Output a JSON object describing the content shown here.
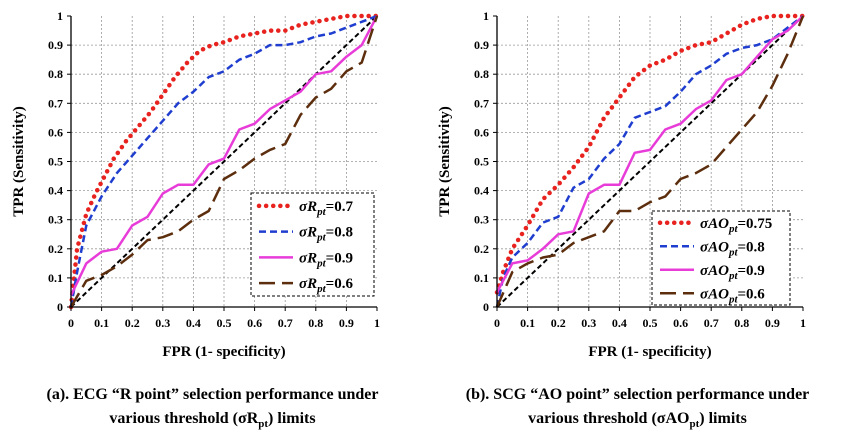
{
  "panels": [
    {
      "caption_line1": "(a). ECG “R point” selection performance under",
      "caption_line2": "various threshold (σR",
      "caption_sub": "pt",
      "caption_end": ") limits"
    },
    {
      "caption_line1": "(b). SCG “AO point” selection performance under",
      "caption_line2": "various threshold (σAO",
      "caption_sub": "pt",
      "caption_end": ") limits"
    }
  ],
  "chart_data": [
    {
      "type": "line",
      "xlabel": "FPR (1- specificity)",
      "ylabel": "TPR (Sensitivity)",
      "xlim": [
        0,
        1
      ],
      "ylim": [
        0,
        1
      ],
      "xticks": [
        "0",
        "0.1",
        "0.2",
        "0.3",
        "0.4",
        "0.5",
        "0.6",
        "0.7",
        "0.8",
        "0.9",
        "1"
      ],
      "yticks": [
        "0",
        "0.1",
        "0.2",
        "0.3",
        "0.4",
        "0.5",
        "0.6",
        "0.7",
        "0.8",
        "0.9",
        "1"
      ],
      "grid": true,
      "legend_position": "bottom-right",
      "series": [
        {
          "name_base": "σR",
          "name_sub": "pt",
          "name_value": "=0.7",
          "color": "#e8231f",
          "style": "dotted",
          "x": [
            0,
            0.02,
            0.05,
            0.08,
            0.11,
            0.14,
            0.18,
            0.22,
            0.26,
            0.3,
            0.34,
            0.38,
            0.42,
            0.46,
            0.5,
            0.55,
            0.6,
            0.65,
            0.7,
            0.75,
            0.8,
            0.85,
            0.9,
            0.95,
            1
          ],
          "y": [
            0,
            0.2,
            0.32,
            0.39,
            0.45,
            0.51,
            0.57,
            0.62,
            0.67,
            0.73,
            0.79,
            0.84,
            0.88,
            0.9,
            0.91,
            0.93,
            0.94,
            0.95,
            0.95,
            0.97,
            0.98,
            0.99,
            1.0,
            1.0,
            1.0
          ]
        },
        {
          "name_base": "σR",
          "name_sub": "pt",
          "name_value": "=0.8",
          "color": "#1f3ecf",
          "style": "dashed",
          "x": [
            0,
            0.02,
            0.05,
            0.1,
            0.15,
            0.2,
            0.25,
            0.3,
            0.35,
            0.4,
            0.45,
            0.5,
            0.55,
            0.6,
            0.65,
            0.7,
            0.75,
            0.8,
            0.85,
            0.9,
            0.95,
            1
          ],
          "y": [
            0,
            0.12,
            0.28,
            0.38,
            0.46,
            0.52,
            0.58,
            0.64,
            0.7,
            0.74,
            0.79,
            0.81,
            0.85,
            0.87,
            0.9,
            0.9,
            0.91,
            0.93,
            0.94,
            0.96,
            0.98,
            1.0
          ]
        },
        {
          "name_base": "σR",
          "name_sub": "pt",
          "name_value": "=0.9",
          "color": "#e83cd9",
          "style": "solid",
          "x": [
            0,
            0.05,
            0.1,
            0.15,
            0.2,
            0.25,
            0.3,
            0.35,
            0.4,
            0.45,
            0.5,
            0.55,
            0.6,
            0.65,
            0.7,
            0.75,
            0.8,
            0.85,
            0.9,
            0.95,
            1
          ],
          "y": [
            0.04,
            0.15,
            0.19,
            0.2,
            0.28,
            0.31,
            0.39,
            0.42,
            0.42,
            0.49,
            0.51,
            0.61,
            0.63,
            0.68,
            0.71,
            0.74,
            0.8,
            0.81,
            0.86,
            0.9,
            1.0
          ]
        },
        {
          "name_base": "σR",
          "name_sub": "pt",
          "name_value": "=0.6",
          "color": "#5c2e0e",
          "style": "longdash",
          "x": [
            0,
            0.05,
            0.1,
            0.15,
            0.2,
            0.25,
            0.3,
            0.35,
            0.4,
            0.45,
            0.5,
            0.55,
            0.6,
            0.65,
            0.7,
            0.75,
            0.8,
            0.85,
            0.9,
            0.95,
            1
          ],
          "y": [
            0,
            0.09,
            0.11,
            0.14,
            0.18,
            0.23,
            0.24,
            0.26,
            0.3,
            0.33,
            0.44,
            0.47,
            0.51,
            0.54,
            0.56,
            0.66,
            0.72,
            0.75,
            0.81,
            0.84,
            1.0
          ]
        },
        {
          "name_base": "",
          "name_sub": "",
          "name_value": "",
          "color": "#000000",
          "style": "diagonal",
          "x": [
            0,
            1
          ],
          "y": [
            0,
            1
          ]
        }
      ]
    },
    {
      "type": "line",
      "xlabel": "FPR (1- specificity)",
      "ylabel": "TPR (Sensitivity)",
      "xlim": [
        0,
        1
      ],
      "ylim": [
        0,
        1
      ],
      "xticks": [
        "0",
        "0.1",
        "0.2",
        "0.3",
        "0.4",
        "0.5",
        "0.6",
        "0.7",
        "0.8",
        "0.9",
        "1"
      ],
      "yticks": [
        "0",
        "0.1",
        "0.2",
        "0.3",
        "0.4",
        "0.5",
        "0.6",
        "0.7",
        "0.8",
        "0.9",
        "1"
      ],
      "grid": true,
      "legend_position": "bottom-right",
      "series": [
        {
          "name_base": "σAO",
          "name_sub": "pt",
          "name_value": "=0.75",
          "color": "#e8231f",
          "style": "dotted",
          "x": [
            0,
            0.02,
            0.05,
            0.1,
            0.15,
            0.2,
            0.25,
            0.3,
            0.35,
            0.4,
            0.45,
            0.5,
            0.55,
            0.6,
            0.65,
            0.7,
            0.75,
            0.8,
            0.85,
            0.9,
            0.95,
            1
          ],
          "y": [
            0.05,
            0.12,
            0.2,
            0.28,
            0.37,
            0.42,
            0.48,
            0.55,
            0.65,
            0.72,
            0.79,
            0.83,
            0.85,
            0.88,
            0.9,
            0.91,
            0.94,
            0.97,
            0.99,
            1.0,
            1.0,
            1.0
          ]
        },
        {
          "name_base": "σAO",
          "name_sub": "pt",
          "name_value": "=0.8",
          "color": "#1f3ecf",
          "style": "dashed",
          "x": [
            0,
            0.02,
            0.05,
            0.1,
            0.15,
            0.2,
            0.25,
            0.3,
            0.35,
            0.4,
            0.45,
            0.5,
            0.55,
            0.6,
            0.65,
            0.7,
            0.75,
            0.8,
            0.85,
            0.9,
            0.95,
            1
          ],
          "y": [
            0,
            0.1,
            0.17,
            0.22,
            0.29,
            0.31,
            0.41,
            0.44,
            0.51,
            0.56,
            0.65,
            0.67,
            0.69,
            0.74,
            0.8,
            0.83,
            0.87,
            0.89,
            0.9,
            0.92,
            0.96,
            1.0
          ]
        },
        {
          "name_base": "σAO",
          "name_sub": "pt",
          "name_value": "=0.9",
          "color": "#e83cd9",
          "style": "solid",
          "x": [
            0,
            0.05,
            0.1,
            0.15,
            0.2,
            0.25,
            0.3,
            0.35,
            0.4,
            0.45,
            0.5,
            0.55,
            0.6,
            0.65,
            0.7,
            0.75,
            0.8,
            0.85,
            0.9,
            0.95,
            1
          ],
          "y": [
            0.05,
            0.15,
            0.16,
            0.2,
            0.25,
            0.26,
            0.39,
            0.42,
            0.42,
            0.53,
            0.54,
            0.61,
            0.63,
            0.68,
            0.71,
            0.78,
            0.8,
            0.86,
            0.92,
            0.95,
            1.0
          ]
        },
        {
          "name_base": "σAO",
          "name_sub": "pt",
          "name_value": "=0.6",
          "color": "#5c2e0e",
          "style": "longdash",
          "x": [
            0,
            0.05,
            0.1,
            0.15,
            0.2,
            0.25,
            0.3,
            0.35,
            0.4,
            0.45,
            0.5,
            0.55,
            0.6,
            0.65,
            0.7,
            0.75,
            0.8,
            0.85,
            0.9,
            0.95,
            1
          ],
          "y": [
            0,
            0.12,
            0.15,
            0.17,
            0.18,
            0.22,
            0.24,
            0.26,
            0.33,
            0.33,
            0.36,
            0.38,
            0.44,
            0.46,
            0.49,
            0.55,
            0.61,
            0.67,
            0.76,
            0.87,
            1.0
          ]
        },
        {
          "name_base": "",
          "name_sub": "",
          "name_value": "",
          "color": "#000000",
          "style": "diagonal",
          "x": [
            0,
            1
          ],
          "y": [
            0,
            1
          ]
        }
      ]
    }
  ]
}
